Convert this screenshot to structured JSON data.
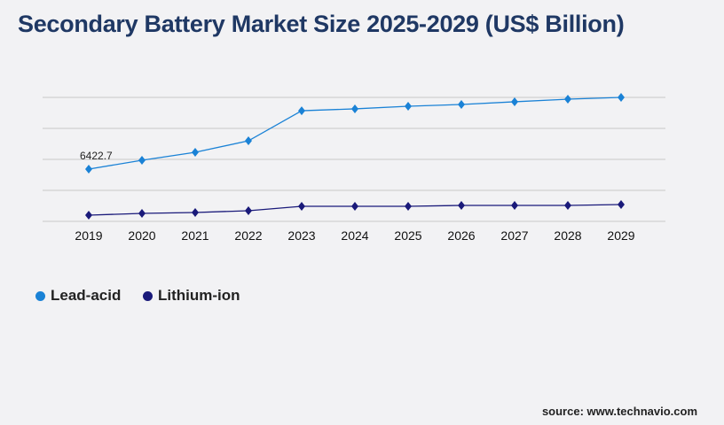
{
  "title": "Secondary Battery Market Size 2025-2029 (US$ Billion)",
  "source": "source: www.technavio.com",
  "chart_data": {
    "type": "line",
    "title": "Secondary Battery Market Size 2025-2029 (US$ Billion)",
    "categories": [
      "2019",
      "2020",
      "2021",
      "2022",
      "2023",
      "2024",
      "2025",
      "2026",
      "2027",
      "2028",
      "2029"
    ],
    "ylim": [
      0,
      15240
    ],
    "grid": true,
    "legend_position": "bottom-left",
    "series": [
      {
        "name": "Lead-acid",
        "color": "#1a82d6",
        "values": [
          6422.7,
          7510,
          8490,
          9900,
          13600,
          13830,
          14150,
          14370,
          14700,
          15020,
          15240
        ]
      },
      {
        "name": "Lithium-ion",
        "color": "#1a1a7a",
        "values": [
          760,
          980,
          1090,
          1310,
          1850,
          1850,
          1850,
          1960,
          1960,
          1960,
          2070
        ]
      }
    ],
    "annotations": [
      {
        "series": "Lead-acid",
        "category": "2019",
        "text": "6422.7"
      }
    ]
  }
}
